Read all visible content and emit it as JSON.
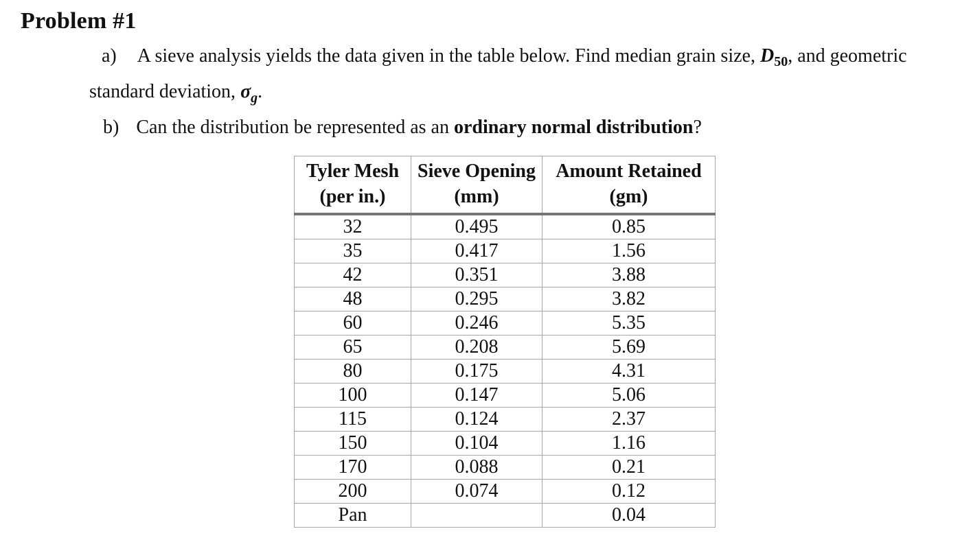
{
  "page": {
    "title": "Problem #1"
  },
  "problem": {
    "part_a": {
      "label": "a)",
      "line1_text": "A sieve analysis yields the data given in the table below. Find median grain size, ",
      "d50_base": "D",
      "d50_sub": "50",
      "line1_tail": ", and geometric",
      "line2_text": "standard deviation, ",
      "sigma_base": "σ",
      "sigma_sub": "g",
      "line2_tail": "."
    },
    "part_b": {
      "label": "b)",
      "text_before_bold": "Can the distribution be represented as an ",
      "bold_text": "ordinary normal distribution",
      "text_after_bold": "?"
    }
  },
  "table": {
    "columns": [
      {
        "title": "Tyler Mesh",
        "unit": "(per in.)"
      },
      {
        "title": "Sieve Opening",
        "unit": "(mm)"
      },
      {
        "title": "Amount Retained",
        "unit": "(gm)"
      }
    ],
    "rows": [
      [
        "32",
        "0.495",
        "0.85"
      ],
      [
        "35",
        "0.417",
        "1.56"
      ],
      [
        "42",
        "0.351",
        "3.88"
      ],
      [
        "48",
        "0.295",
        "3.82"
      ],
      [
        "60",
        "0.246",
        "5.35"
      ],
      [
        "65",
        "0.208",
        "5.69"
      ],
      [
        "80",
        "0.175",
        "4.31"
      ],
      [
        "100",
        "0.147",
        "5.06"
      ],
      [
        "115",
        "0.124",
        "2.37"
      ],
      [
        "150",
        "0.104",
        "1.16"
      ],
      [
        "170",
        "0.088",
        "0.21"
      ],
      [
        "200",
        "0.074",
        "0.12"
      ],
      [
        "Pan",
        "",
        "0.04"
      ]
    ]
  },
  "chart_data": {
    "type": "table",
    "title": "Sieve analysis data",
    "columns": [
      "Tyler Mesh (per in.)",
      "Sieve Opening (mm)",
      "Amount Retained (gm)"
    ],
    "tyler_mesh": [
      "32",
      "35",
      "42",
      "48",
      "60",
      "65",
      "80",
      "100",
      "115",
      "150",
      "170",
      "200",
      "Pan"
    ],
    "sieve_opening_mm": [
      0.495,
      0.417,
      0.351,
      0.295,
      0.246,
      0.208,
      0.175,
      0.147,
      0.124,
      0.104,
      0.088,
      0.074,
      null
    ],
    "amount_retained_gm": [
      0.85,
      1.56,
      3.88,
      3.82,
      5.35,
      5.69,
      4.31,
      5.06,
      2.37,
      1.16,
      0.21,
      0.12,
      0.04
    ]
  }
}
